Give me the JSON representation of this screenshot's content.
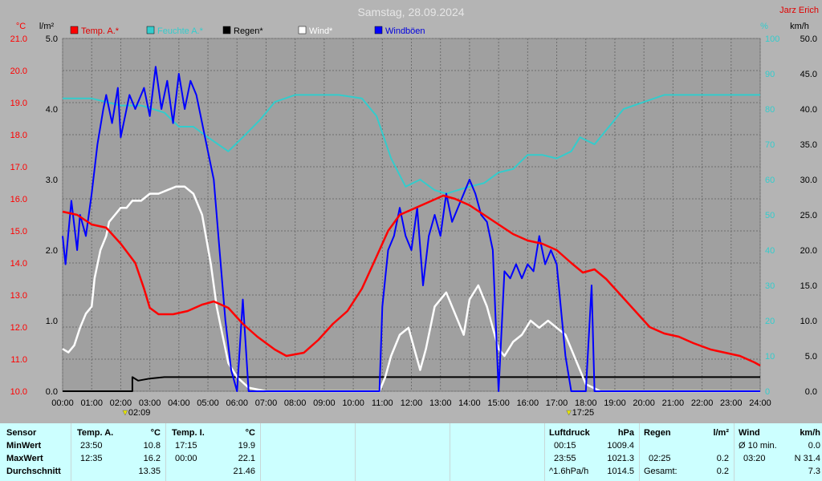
{
  "title": "Samstag, 28.09.2024",
  "author": "Jarz Erich",
  "legend": [
    {
      "name": "Temp. A.*",
      "color": "#ff0000"
    },
    {
      "name": "Feuchte A.*",
      "color": "#33cccc"
    },
    {
      "name": "Regen*",
      "color": "#000000"
    },
    {
      "name": "Wind*",
      "color": "#ffffff"
    },
    {
      "name": "Windböen",
      "color": "#0000ff"
    }
  ],
  "axes": {
    "temp": {
      "unit": "°C",
      "min": 10,
      "max": 21,
      "step": 1,
      "color": "#ff0000"
    },
    "rain": {
      "unit": "l/m²",
      "min": 0,
      "max": 5,
      "step": 1,
      "color": "#000000"
    },
    "hum": {
      "unit": "%",
      "min": 0,
      "max": 100,
      "step": 10,
      "color": "#33cccc"
    },
    "wind": {
      "unit": "km/h",
      "min": 0,
      "max": 50,
      "step": 5,
      "color": "#000000"
    }
  },
  "x_ticks": [
    "00:00",
    "01:00",
    "02:00",
    "03:00",
    "04:00",
    "05:00",
    "06:00",
    "07:00",
    "08:00",
    "09:00",
    "10:00",
    "11:00",
    "12:00",
    "13:00",
    "14:00",
    "15:00",
    "16:00",
    "17:00",
    "18:00",
    "19:00",
    "20:00",
    "21:00",
    "22:00",
    "23:00",
    "24:00"
  ],
  "sun": {
    "rise": "02:09",
    "set": "17:25"
  },
  "chart_data": {
    "type": "line",
    "x_unit": "hours",
    "series": [
      {
        "name": "Temp. A.*",
        "axis": "temp",
        "color": "#ff0000",
        "points": [
          [
            0,
            15.6
          ],
          [
            0.5,
            15.5
          ],
          [
            1,
            15.2
          ],
          [
            1.5,
            15.1
          ],
          [
            2,
            14.6
          ],
          [
            2.5,
            14.0
          ],
          [
            2.8,
            13.2
          ],
          [
            3,
            12.6
          ],
          [
            3.3,
            12.4
          ],
          [
            3.8,
            12.4
          ],
          [
            4.3,
            12.5
          ],
          [
            4.8,
            12.7
          ],
          [
            5.2,
            12.8
          ],
          [
            5.7,
            12.6
          ],
          [
            6.2,
            12.1
          ],
          [
            6.7,
            11.7
          ],
          [
            7.3,
            11.3
          ],
          [
            7.7,
            11.1
          ],
          [
            8.3,
            11.2
          ],
          [
            8.8,
            11.6
          ],
          [
            9.3,
            12.1
          ],
          [
            9.8,
            12.5
          ],
          [
            10.3,
            13.2
          ],
          [
            10.8,
            14.2
          ],
          [
            11.2,
            15.0
          ],
          [
            11.6,
            15.5
          ],
          [
            12.1,
            15.7
          ],
          [
            12.6,
            15.9
          ],
          [
            13.1,
            16.1
          ],
          [
            13.5,
            16.0
          ],
          [
            14.0,
            15.8
          ],
          [
            14.5,
            15.5
          ],
          [
            15.0,
            15.2
          ],
          [
            15.5,
            14.9
          ],
          [
            16.0,
            14.7
          ],
          [
            16.5,
            14.6
          ],
          [
            17.0,
            14.4
          ],
          [
            17.5,
            14.0
          ],
          [
            17.9,
            13.7
          ],
          [
            18.3,
            13.8
          ],
          [
            18.7,
            13.5
          ],
          [
            19.2,
            13.0
          ],
          [
            19.7,
            12.5
          ],
          [
            20.2,
            12.0
          ],
          [
            20.7,
            11.8
          ],
          [
            21.2,
            11.7
          ],
          [
            21.7,
            11.5
          ],
          [
            22.3,
            11.3
          ],
          [
            22.8,
            11.2
          ],
          [
            23.3,
            11.1
          ],
          [
            23.8,
            10.9
          ],
          [
            24,
            10.8
          ]
        ]
      },
      {
        "name": "Feuchte A.*",
        "axis": "hum",
        "color": "#33cccc",
        "points": [
          [
            0,
            83
          ],
          [
            1,
            83
          ],
          [
            1.5,
            82
          ],
          [
            2,
            81
          ],
          [
            2.7,
            81
          ],
          [
            3.5,
            79
          ],
          [
            4,
            75
          ],
          [
            4.5,
            75
          ],
          [
            5,
            72
          ],
          [
            5.7,
            68
          ],
          [
            6.2,
            72
          ],
          [
            6.8,
            77
          ],
          [
            7.3,
            82
          ],
          [
            8,
            84
          ],
          [
            8.8,
            84
          ],
          [
            9.5,
            84
          ],
          [
            10.3,
            83
          ],
          [
            10.8,
            78
          ],
          [
            11.3,
            66
          ],
          [
            11.8,
            58
          ],
          [
            12.3,
            60
          ],
          [
            12.8,
            57
          ],
          [
            13.2,
            56
          ],
          [
            13.6,
            57
          ],
          [
            14,
            58
          ],
          [
            14.5,
            59
          ],
          [
            15,
            62
          ],
          [
            15.5,
            63
          ],
          [
            16,
            67
          ],
          [
            16.5,
            67
          ],
          [
            17,
            66
          ],
          [
            17.5,
            68
          ],
          [
            17.8,
            72
          ],
          [
            18.3,
            70
          ],
          [
            18.8,
            75
          ],
          [
            19.3,
            80
          ],
          [
            20,
            82
          ],
          [
            20.7,
            84
          ],
          [
            21.5,
            84
          ],
          [
            22.5,
            84
          ],
          [
            23.3,
            84
          ],
          [
            24,
            84
          ]
        ]
      },
      {
        "name": "Regen*",
        "axis": "rain",
        "color": "#000000",
        "points": [
          [
            0,
            0
          ],
          [
            2.4,
            0
          ],
          [
            2.4,
            0.2
          ],
          [
            2.6,
            0.15
          ],
          [
            3,
            0.18
          ],
          [
            3.5,
            0.2
          ],
          [
            3.9,
            0.2
          ],
          [
            4,
            0.2
          ],
          [
            24,
            0.2
          ]
        ]
      },
      {
        "name": "Wind*",
        "axis": "wind",
        "color": "#ffffff",
        "points": [
          [
            0,
            6
          ],
          [
            0.2,
            5.5
          ],
          [
            0.4,
            6.5
          ],
          [
            0.6,
            9
          ],
          [
            0.8,
            11
          ],
          [
            1,
            12
          ],
          [
            1.1,
            16
          ],
          [
            1.3,
            20
          ],
          [
            1.5,
            22
          ],
          [
            1.6,
            24
          ],
          [
            1.8,
            25
          ],
          [
            2,
            26
          ],
          [
            2.2,
            26
          ],
          [
            2.4,
            27
          ],
          [
            2.7,
            27
          ],
          [
            3,
            28
          ],
          [
            3.3,
            28
          ],
          [
            3.6,
            28.5
          ],
          [
            3.9,
            29
          ],
          [
            4.2,
            29
          ],
          [
            4.5,
            28
          ],
          [
            4.8,
            25
          ],
          [
            5.1,
            18
          ],
          [
            5.3,
            12
          ],
          [
            5.5,
            8
          ],
          [
            5.7,
            4
          ],
          [
            6,
            2
          ],
          [
            6.4,
            0.5
          ],
          [
            7,
            0
          ],
          [
            10.9,
            0
          ],
          [
            11.1,
            2
          ],
          [
            11.3,
            5
          ],
          [
            11.6,
            8
          ],
          [
            11.9,
            9
          ],
          [
            12.1,
            6
          ],
          [
            12.3,
            3
          ],
          [
            12.5,
            6
          ],
          [
            12.8,
            12
          ],
          [
            13.2,
            14
          ],
          [
            13.5,
            11
          ],
          [
            13.8,
            8
          ],
          [
            14,
            13
          ],
          [
            14.3,
            15
          ],
          [
            14.6,
            12
          ],
          [
            15,
            6
          ],
          [
            15.2,
            5
          ],
          [
            15.5,
            7
          ],
          [
            15.8,
            8
          ],
          [
            16.1,
            10
          ],
          [
            16.4,
            9
          ],
          [
            16.7,
            10
          ],
          [
            17,
            9
          ],
          [
            17.3,
            8
          ],
          [
            17.5,
            6
          ],
          [
            17.8,
            3
          ],
          [
            18,
            1
          ],
          [
            18.5,
            0
          ],
          [
            24,
            0
          ]
        ]
      },
      {
        "name": "Windböen",
        "axis": "wind",
        "color": "#0000ff",
        "points": [
          [
            0,
            22
          ],
          [
            0.1,
            18
          ],
          [
            0.3,
            27
          ],
          [
            0.5,
            20
          ],
          [
            0.6,
            25
          ],
          [
            0.8,
            22
          ],
          [
            1,
            28
          ],
          [
            1.2,
            35
          ],
          [
            1.4,
            40
          ],
          [
            1.5,
            42
          ],
          [
            1.7,
            38
          ],
          [
            1.9,
            43
          ],
          [
            2,
            36
          ],
          [
            2.3,
            42
          ],
          [
            2.5,
            40
          ],
          [
            2.8,
            43
          ],
          [
            3,
            39
          ],
          [
            3.2,
            46
          ],
          [
            3.4,
            40
          ],
          [
            3.6,
            44
          ],
          [
            3.8,
            38
          ],
          [
            4,
            45
          ],
          [
            4.2,
            40
          ],
          [
            4.4,
            44
          ],
          [
            4.6,
            42
          ],
          [
            4.8,
            38
          ],
          [
            5,
            34
          ],
          [
            5.2,
            30
          ],
          [
            5.4,
            20
          ],
          [
            5.6,
            10
          ],
          [
            5.8,
            3
          ],
          [
            6,
            0
          ],
          [
            6.2,
            13
          ],
          [
            6.4,
            0
          ],
          [
            10.9,
            0
          ],
          [
            11,
            12
          ],
          [
            11.2,
            20
          ],
          [
            11.4,
            22
          ],
          [
            11.6,
            26
          ],
          [
            11.8,
            22
          ],
          [
            12,
            20
          ],
          [
            12.2,
            26
          ],
          [
            12.4,
            15
          ],
          [
            12.6,
            22
          ],
          [
            12.8,
            25
          ],
          [
            13,
            22
          ],
          [
            13.2,
            28
          ],
          [
            13.4,
            24
          ],
          [
            13.6,
            26
          ],
          [
            13.8,
            28
          ],
          [
            14,
            30
          ],
          [
            14.2,
            28
          ],
          [
            14.4,
            25
          ],
          [
            14.6,
            24
          ],
          [
            14.8,
            20
          ],
          [
            15,
            0
          ],
          [
            15.2,
            17
          ],
          [
            15.4,
            16
          ],
          [
            15.6,
            18
          ],
          [
            15.8,
            16
          ],
          [
            16,
            18
          ],
          [
            16.2,
            17
          ],
          [
            16.4,
            22
          ],
          [
            16.6,
            18
          ],
          [
            16.8,
            20
          ],
          [
            17,
            18
          ],
          [
            17.3,
            5
          ],
          [
            17.5,
            0
          ],
          [
            18,
            0
          ],
          [
            18.2,
            15
          ],
          [
            18.3,
            0
          ],
          [
            24,
            0
          ]
        ]
      }
    ]
  },
  "stats": {
    "sensor_header": "Sensor",
    "row_labels": [
      "MinWert",
      "MaxWert",
      "Durchschnitt"
    ],
    "temp_a": {
      "header": "Temp. A.",
      "unit": "°C",
      "rows": [
        [
          "23:50",
          "10.8"
        ],
        [
          "12:35",
          "16.2"
        ],
        [
          "",
          "13.35"
        ]
      ]
    },
    "temp_i": {
      "header": "Temp. I.",
      "unit": "°C",
      "rows": [
        [
          "17:15",
          "19.9"
        ],
        [
          "00:00",
          "22.1"
        ],
        [
          "",
          "21.46"
        ]
      ]
    },
    "pressure": {
      "header": "Luftdruck",
      "unit": "hPa",
      "rows": [
        [
          "00:15",
          "1009.4"
        ],
        [
          "23:55",
          "1021.3"
        ],
        [
          "^1.6hPa/h",
          "1014.5"
        ]
      ]
    },
    "rain": {
      "header": "Regen",
      "unit": "l/m²",
      "rows": [
        [
          "",
          ""
        ],
        [
          "02:25",
          "0.2"
        ],
        [
          "Gesamt:",
          "0.2"
        ]
      ]
    },
    "wind": {
      "header": "Wind",
      "unit": "km/h",
      "rows": [
        [
          "Ø 10 min.",
          "0.0"
        ],
        [
          "03:20",
          "N 31.4"
        ],
        [
          "",
          "7.3"
        ]
      ]
    }
  }
}
